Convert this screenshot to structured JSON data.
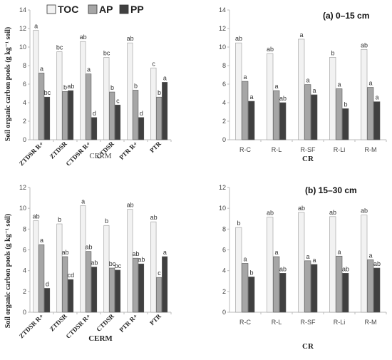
{
  "legend": {
    "entries": [
      {
        "label": "TOC",
        "color": "#f2f2f2"
      },
      {
        "label": "AP",
        "color": "#a6a6a6"
      },
      {
        "label": "PP",
        "color": "#404040"
      }
    ]
  },
  "panel_labels": {
    "a": "(a)   0–15 cm",
    "b": "(b)  15–30 cm"
  },
  "y_axis_label": "Soil organic carbon pools (g kg⁻¹ soil)",
  "chart_data": [
    {
      "id": "a-cerm",
      "type": "bar",
      "categories": [
        "ZTDSR R+",
        "ZTDSR",
        "CTDSR R+",
        "CTDSR",
        "PTR R+",
        "PTR"
      ],
      "series": [
        {
          "name": "TOC",
          "values": [
            11.8,
            9.5,
            10.6,
            8.9,
            10.45,
            7.75
          ],
          "letters": [
            "a",
            "bc",
            "ab",
            "bc",
            "ab",
            "c"
          ]
        },
        {
          "name": "AP",
          "values": [
            7.2,
            5.2,
            7.1,
            5.15,
            5.35,
            4.6
          ],
          "letters": [
            "a",
            "b",
            "a",
            "b",
            "b",
            "b"
          ]
        },
        {
          "name": "PP",
          "values": [
            4.6,
            5.3,
            2.4,
            3.75,
            2.4,
            6.2
          ],
          "letters": [
            "bc",
            "ab",
            "d",
            "c",
            "d",
            "a"
          ]
        }
      ],
      "ylim": [
        0,
        14
      ],
      "yticks": [
        0,
        2,
        4,
        6,
        8,
        10,
        12,
        14
      ],
      "xlabel": "CERM"
    },
    {
      "id": "a-cr",
      "type": "bar",
      "categories": [
        "R-C",
        "R-L",
        "R-SF",
        "R-Li",
        "R-M"
      ],
      "series": [
        {
          "name": "TOC",
          "values": [
            10.45,
            9.3,
            10.85,
            8.9,
            9.75
          ],
          "letters": [
            "ab",
            "ab",
            "a",
            "b",
            "ab"
          ]
        },
        {
          "name": "AP",
          "values": [
            6.3,
            5.3,
            5.95,
            5.5,
            5.65
          ],
          "letters": [
            "a",
            "a",
            "a",
            "a",
            "a"
          ]
        },
        {
          "name": "PP",
          "values": [
            4.15,
            4.0,
            4.85,
            3.35,
            4.1
          ],
          "letters": [
            "a",
            "ab",
            "a",
            "b",
            "a"
          ]
        }
      ],
      "ylim": [
        0,
        14
      ],
      "yticks": [
        0,
        2,
        4,
        6,
        8,
        10,
        12,
        14
      ],
      "xlabel": "CR"
    },
    {
      "id": "b-cerm",
      "type": "bar",
      "categories": [
        "ZTDSR R+",
        "ZTDSR",
        "CTDSR R+",
        "CTDSR",
        "PTR R+",
        "PTR"
      ],
      "series": [
        {
          "name": "TOC",
          "values": [
            8.8,
            8.5,
            10.25,
            8.35,
            9.9,
            8.7
          ],
          "letters": [
            "ab",
            "b",
            "a",
            "b",
            "ab",
            "ab"
          ]
        },
        {
          "name": "AP",
          "values": [
            6.5,
            5.35,
            5.85,
            4.25,
            5.2,
            3.35
          ],
          "letters": [
            "a",
            "ab",
            "ab",
            "bc",
            "ab",
            "c"
          ]
        },
        {
          "name": "PP",
          "values": [
            2.3,
            3.15,
            4.35,
            4.05,
            4.65,
            5.35
          ],
          "letters": [
            "d",
            "cd",
            "ab",
            "bc",
            "ab",
            "a"
          ]
        }
      ],
      "ylim": [
        0,
        12
      ],
      "yticks": [
        0,
        2,
        4,
        6,
        8,
        10,
        12
      ],
      "xlabel": "CERM"
    },
    {
      "id": "b-cr",
      "type": "bar",
      "categories": [
        "R-C",
        "R-L",
        "R-SF",
        "R-Li",
        "R-M"
      ],
      "series": [
        {
          "name": "TOC",
          "values": [
            8.15,
            9.15,
            9.6,
            9.2,
            9.35
          ],
          "letters": [
            "b",
            "ab",
            "ab",
            "ab",
            "ab"
          ]
        },
        {
          "name": "AP",
          "values": [
            4.7,
            5.35,
            4.95,
            5.4,
            5.05
          ],
          "letters": [
            "a",
            "a",
            "a",
            "a",
            "a"
          ]
        },
        {
          "name": "PP",
          "values": [
            3.4,
            3.75,
            4.6,
            3.75,
            4.25
          ],
          "letters": [
            "b",
            "ab",
            "a",
            "ab",
            "ab"
          ]
        }
      ],
      "ylim": [
        0,
        12
      ],
      "yticks": [
        0,
        2,
        4,
        6,
        8,
        10,
        12
      ],
      "xlabel": "CR"
    }
  ]
}
